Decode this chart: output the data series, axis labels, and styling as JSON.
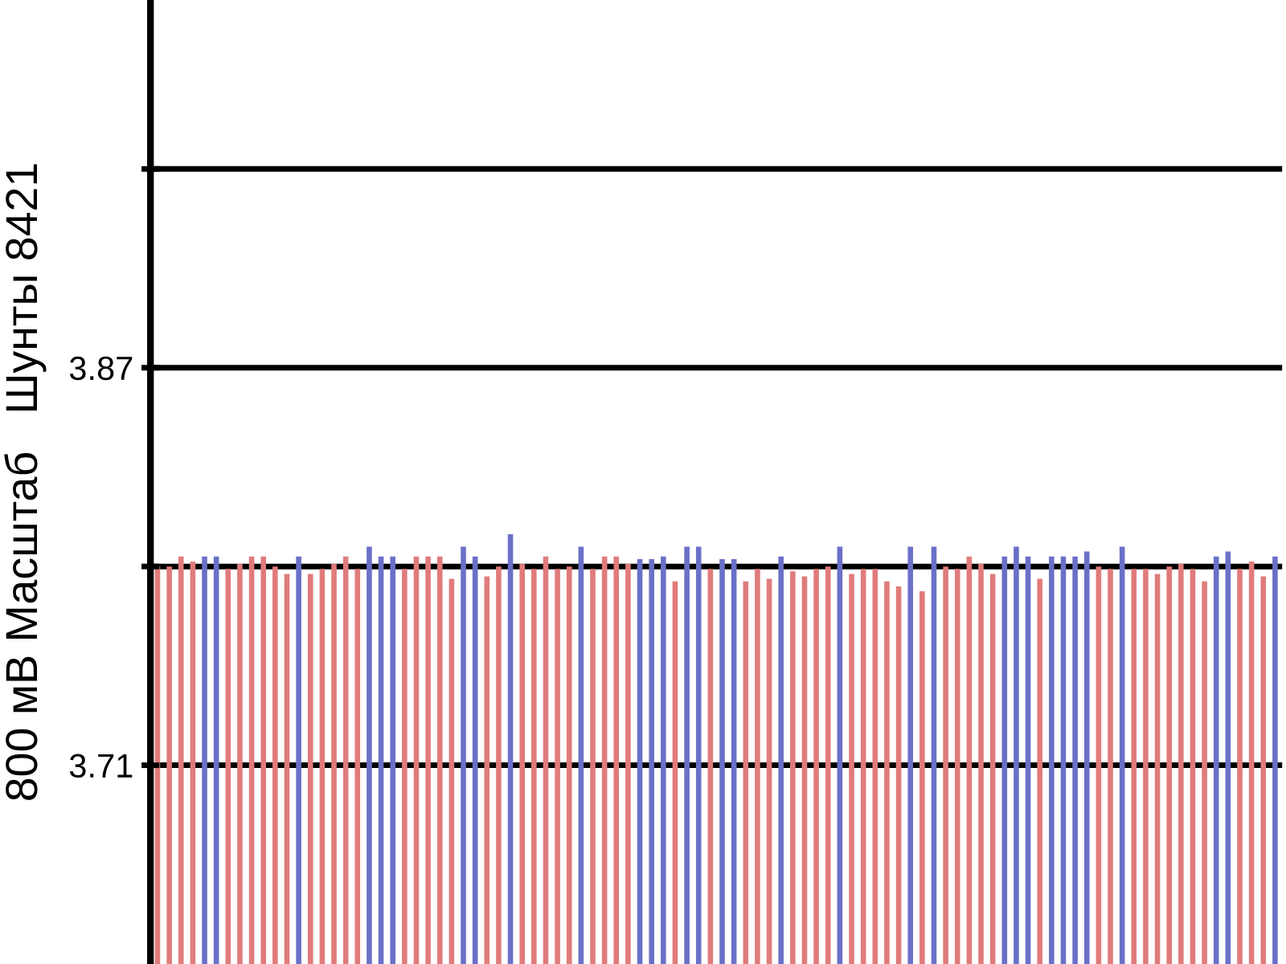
{
  "chart_data": {
    "type": "bar",
    "ylabel": "800 мВ Масштаб   Шунты 8421",
    "categories": [
      null,
      null,
      null,
      null,
      null,
      null,
      null,
      null,
      null,
      null,
      null,
      null,
      null,
      null,
      null,
      null,
      null,
      null,
      null,
      null,
      null,
      null,
      null,
      null,
      null,
      null,
      null,
      null,
      null,
      null,
      null,
      null,
      null,
      null,
      null,
      null,
      null,
      null,
      null,
      null,
      null,
      null,
      null,
      null,
      null,
      null,
      null,
      null,
      null,
      null,
      null,
      null,
      null,
      null,
      null,
      null,
      null,
      null,
      null,
      null,
      null,
      null,
      null,
      null,
      null,
      null,
      null,
      null,
      null,
      null,
      null,
      null,
      null,
      null,
      null,
      null,
      null,
      null,
      null,
      null,
      null,
      null,
      null,
      null,
      null,
      null,
      null,
      null,
      null,
      null,
      null,
      null,
      null,
      null,
      null,
      null
    ],
    "values": [
      3.79,
      3.79,
      3.794,
      3.792,
      3.794,
      3.794,
      3.789,
      3.791,
      3.794,
      3.794,
      3.79,
      3.787,
      3.794,
      3.787,
      3.789,
      3.791,
      3.794,
      3.789,
      3.798,
      3.794,
      3.794,
      3.789,
      3.794,
      3.794,
      3.794,
      3.785,
      3.798,
      3.794,
      3.786,
      3.79,
      3.803,
      3.791,
      3.789,
      3.794,
      3.789,
      3.79,
      3.798,
      3.789,
      3.794,
      3.794,
      3.791,
      3.793,
      3.793,
      3.794,
      3.784,
      3.798,
      3.798,
      3.789,
      3.793,
      3.793,
      3.784,
      3.789,
      3.785,
      3.794,
      3.788,
      3.786,
      3.789,
      3.79,
      3.798,
      3.787,
      3.789,
      3.789,
      3.784,
      3.782,
      3.798,
      3.78,
      3.798,
      3.79,
      3.789,
      3.794,
      3.791,
      3.787,
      3.794,
      3.798,
      3.794,
      3.785,
      3.794,
      3.794,
      3.794,
      3.796,
      3.79,
      3.789,
      3.798,
      3.789,
      3.789,
      3.787,
      3.79,
      3.791,
      3.789,
      3.784,
      3.794,
      3.796,
      3.789,
      3.792,
      3.786,
      3.794
    ],
    "colors": [
      "#e07b7b",
      "#e07b7b",
      "#e07b7b",
      "#e07b7b",
      "#6b70c8",
      "#6b70c8",
      "#e07b7b",
      "#e07b7b",
      "#e07b7b",
      "#e07b7b",
      "#e07b7b",
      "#e07b7b",
      "#6b70c8",
      "#e07b7b",
      "#e07b7b",
      "#e07b7b",
      "#e07b7b",
      "#e07b7b",
      "#6b70c8",
      "#6b70c8",
      "#6b70c8",
      "#e07b7b",
      "#e07b7b",
      "#e07b7b",
      "#e07b7b",
      "#e07b7b",
      "#6b70c8",
      "#6b70c8",
      "#e07b7b",
      "#e07b7b",
      "#6b70c8",
      "#e07b7b",
      "#e07b7b",
      "#e07b7b",
      "#e07b7b",
      "#e07b7b",
      "#6b70c8",
      "#e07b7b",
      "#e07b7b",
      "#e07b7b",
      "#e07b7b",
      "#6b70c8",
      "#6b70c8",
      "#6b70c8",
      "#e07b7b",
      "#6b70c8",
      "#6b70c8",
      "#e07b7b",
      "#6b70c8",
      "#6b70c8",
      "#e07b7b",
      "#e07b7b",
      "#e07b7b",
      "#6b70c8",
      "#e07b7b",
      "#e07b7b",
      "#e07b7b",
      "#e07b7b",
      "#6b70c8",
      "#e07b7b",
      "#e07b7b",
      "#e07b7b",
      "#e07b7b",
      "#e07b7b",
      "#6b70c8",
      "#e07b7b",
      "#6b70c8",
      "#e07b7b",
      "#e07b7b",
      "#e07b7b",
      "#e07b7b",
      "#e07b7b",
      "#6b70c8",
      "#6b70c8",
      "#6b70c8",
      "#e07b7b",
      "#6b70c8",
      "#6b70c8",
      "#6b70c8",
      "#6b70c8",
      "#e07b7b",
      "#e07b7b",
      "#6b70c8",
      "#e07b7b",
      "#e07b7b",
      "#e07b7b",
      "#e07b7b",
      "#e07b7b",
      "#e07b7b",
      "#e07b7b",
      "#6b70c8",
      "#6b70c8",
      "#e07b7b",
      "#e07b7b",
      "#e07b7b",
      "#6b70c8"
    ],
    "ylim": [
      3.63,
      4.018
    ],
    "yticks": [
      3.71,
      {
        "value": 3.79,
        "label": null
      },
      3.87,
      {
        "value": 3.95,
        "label": null
      }
    ],
    "grid": "y"
  }
}
